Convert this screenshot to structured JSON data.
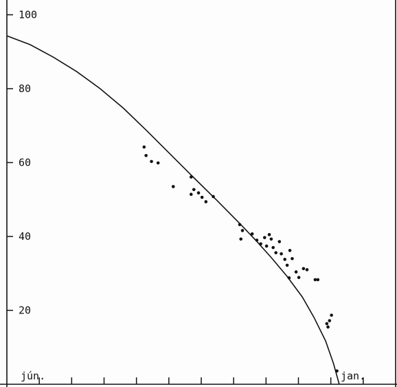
{
  "chart_data": {
    "type": "scatter",
    "title": "",
    "xlabel": "",
    "ylabel": "",
    "ylim": [
      0,
      104
    ],
    "xlim": [
      0,
      100
    ],
    "yticks": [
      20,
      40,
      60,
      80,
      100
    ],
    "ytick_labels": [
      "20",
      "40",
      "60",
      "80",
      "100"
    ],
    "corner_labels": {
      "left": "jún.",
      "right": "jan."
    },
    "grid": false,
    "legend": "none",
    "colors": {
      "ink": "#111111",
      "background": "#fdfdfd"
    },
    "points": [
      {
        "x": 35.3,
        "y": 64.2
      },
      {
        "x": 35.8,
        "y": 61.9
      },
      {
        "x": 37.2,
        "y": 60.3
      },
      {
        "x": 38.9,
        "y": 59.9
      },
      {
        "x": 42.8,
        "y": 53.5
      },
      {
        "x": 47.4,
        "y": 56.1
      },
      {
        "x": 47.4,
        "y": 51.4
      },
      {
        "x": 48.1,
        "y": 52.7
      },
      {
        "x": 49.3,
        "y": 51.8
      },
      {
        "x": 50.2,
        "y": 50.6
      },
      {
        "x": 51.2,
        "y": 49.4
      },
      {
        "x": 53.1,
        "y": 50.8
      },
      {
        "x": 59.9,
        "y": 43.2
      },
      {
        "x": 60.6,
        "y": 41.6
      },
      {
        "x": 60.2,
        "y": 39.3
      },
      {
        "x": 63.1,
        "y": 40.7
      },
      {
        "x": 64.3,
        "y": 39.0
      },
      {
        "x": 65.3,
        "y": 38.0
      },
      {
        "x": 66.3,
        "y": 39.7
      },
      {
        "x": 66.8,
        "y": 37.4
      },
      {
        "x": 67.5,
        "y": 40.5
      },
      {
        "x": 68.0,
        "y": 39.3
      },
      {
        "x": 68.5,
        "y": 37.0
      },
      {
        "x": 69.2,
        "y": 35.6
      },
      {
        "x": 70.1,
        "y": 38.6
      },
      {
        "x": 70.6,
        "y": 35.3
      },
      {
        "x": 71.5,
        "y": 33.8
      },
      {
        "x": 72.1,
        "y": 32.2
      },
      {
        "x": 72.8,
        "y": 36.2
      },
      {
        "x": 73.4,
        "y": 34.0
      },
      {
        "x": 72.6,
        "y": 28.8
      },
      {
        "x": 74.4,
        "y": 30.4
      },
      {
        "x": 75.1,
        "y": 28.9
      },
      {
        "x": 76.3,
        "y": 31.3
      },
      {
        "x": 77.2,
        "y": 31.0
      },
      {
        "x": 79.3,
        "y": 28.3
      },
      {
        "x": 80.0,
        "y": 28.3
      },
      {
        "x": 82.3,
        "y": 16.4
      },
      {
        "x": 82.6,
        "y": 15.5
      },
      {
        "x": 83.0,
        "y": 17.2
      },
      {
        "x": 83.5,
        "y": 18.7
      },
      {
        "x": 84.9,
        "y": 3.6
      }
    ],
    "fit_curve": [
      {
        "x": 0,
        "y": 94.3
      },
      {
        "x": 6,
        "y": 91.9
      },
      {
        "x": 12,
        "y": 88.5
      },
      {
        "x": 18,
        "y": 84.6
      },
      {
        "x": 24,
        "y": 80.0
      },
      {
        "x": 30,
        "y": 74.7
      },
      {
        "x": 36,
        "y": 68.6
      },
      {
        "x": 42,
        "y": 62.3
      },
      {
        "x": 48,
        "y": 56.0
      },
      {
        "x": 54,
        "y": 49.8
      },
      {
        "x": 60,
        "y": 43.4
      },
      {
        "x": 64,
        "y": 39.0
      },
      {
        "x": 68,
        "y": 34.3
      },
      {
        "x": 72,
        "y": 29.3
      },
      {
        "x": 76,
        "y": 23.6
      },
      {
        "x": 79,
        "y": 18.1
      },
      {
        "x": 82,
        "y": 11.7
      },
      {
        "x": 84,
        "y": 5.7
      },
      {
        "x": 85.5,
        "y": 0
      }
    ]
  }
}
